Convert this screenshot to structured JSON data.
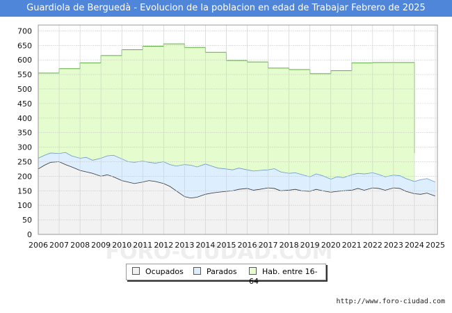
{
  "header": {
    "title": "Guardiola de Berguedà - Evolucion de la poblacion en edad de Trabajar Febrero de 2025"
  },
  "source": {
    "text": "http://www.foro-ciudad.com"
  },
  "watermark": "FORO-CIUDAD.COM",
  "colors": {
    "ocupados": "#f2f2f2",
    "parados": "#ddeeff",
    "hab": "#e4fcce",
    "hab_line": "#5cae3e",
    "parados_line": "#6699cc",
    "ocupados_line": "#333333",
    "grid": "#cccccc",
    "title_bar": "#4f86d9"
  },
  "chart_data": {
    "type": "area",
    "title": "Guardiola de Berguedà - Evolucion de la poblacion en edad de Trabajar Febrero de 2025",
    "xlabel": "",
    "ylabel": "",
    "x_ticks": [
      "2006",
      "2007",
      "2008",
      "2009",
      "2010",
      "2011",
      "2012",
      "2013",
      "2014",
      "2015",
      "2016",
      "2017",
      "2018",
      "2019",
      "2020",
      "2021",
      "2022",
      "2023",
      "2024",
      "2025"
    ],
    "y_ticks": [
      0,
      50,
      100,
      150,
      200,
      250,
      300,
      350,
      400,
      450,
      500,
      550,
      600,
      650,
      700
    ],
    "xlim": [
      2006,
      2025.1
    ],
    "ylim": [
      0,
      720
    ],
    "grid": true,
    "legend": [
      "Ocupados",
      "Parados",
      "Hab. entre 16-64"
    ],
    "legend_position": "bottom",
    "series": [
      {
        "name": "Hab. entre 16-64",
        "note": "annual population, step per year, ends early 2024",
        "years": [
          2006,
          2007,
          2008,
          2009,
          2010,
          2011,
          2012,
          2013,
          2014,
          2015,
          2016,
          2017,
          2018,
          2019,
          2020,
          2021,
          2022,
          2023
        ],
        "values": [
          555,
          570,
          590,
          615,
          635,
          647,
          655,
          643,
          626,
          598,
          593,
          572,
          567,
          553,
          563,
          590,
          591,
          591
        ],
        "end": 2024.0
      },
      {
        "name": "Parados",
        "note": "ocupados + parados, monthly",
        "x": [
          2006.0,
          2006.3,
          2006.6,
          2007.0,
          2007.3,
          2007.6,
          2008.0,
          2008.3,
          2008.6,
          2009.0,
          2009.3,
          2009.6,
          2010.0,
          2010.3,
          2010.6,
          2011.0,
          2011.3,
          2011.6,
          2012.0,
          2012.3,
          2012.6,
          2013.0,
          2013.3,
          2013.6,
          2014.0,
          2014.3,
          2014.6,
          2015.0,
          2015.3,
          2015.6,
          2016.0,
          2016.3,
          2016.6,
          2017.0,
          2017.3,
          2017.6,
          2018.0,
          2018.3,
          2018.6,
          2019.0,
          2019.3,
          2019.6,
          2020.0,
          2020.3,
          2020.6,
          2021.0,
          2021.3,
          2021.6,
          2022.0,
          2022.3,
          2022.6,
          2023.0,
          2023.3,
          2023.6,
          2024.0,
          2024.3,
          2024.6,
          2025.0
        ],
        "values": [
          262,
          272,
          280,
          278,
          282,
          270,
          262,
          265,
          255,
          262,
          270,
          272,
          260,
          250,
          248,
          252,
          248,
          245,
          250,
          240,
          235,
          240,
          238,
          232,
          242,
          235,
          228,
          225,
          222,
          228,
          222,
          218,
          220,
          222,
          226,
          215,
          210,
          212,
          206,
          198,
          208,
          202,
          190,
          198,
          195,
          205,
          210,
          208,
          212,
          206,
          198,
          204,
          202,
          192,
          182,
          188,
          192,
          180
        ]
      },
      {
        "name": "Ocupados",
        "note": "monthly",
        "x": [
          2006.0,
          2006.3,
          2006.6,
          2007.0,
          2007.3,
          2007.6,
          2008.0,
          2008.3,
          2008.6,
          2009.0,
          2009.3,
          2009.6,
          2010.0,
          2010.3,
          2010.6,
          2011.0,
          2011.3,
          2011.6,
          2012.0,
          2012.3,
          2012.6,
          2013.0,
          2013.3,
          2013.6,
          2014.0,
          2014.3,
          2014.6,
          2015.0,
          2015.3,
          2015.6,
          2016.0,
          2016.3,
          2016.6,
          2017.0,
          2017.3,
          2017.6,
          2018.0,
          2018.3,
          2018.6,
          2019.0,
          2019.3,
          2019.6,
          2020.0,
          2020.3,
          2020.6,
          2021.0,
          2021.3,
          2021.6,
          2022.0,
          2022.3,
          2022.6,
          2023.0,
          2023.3,
          2023.6,
          2024.0,
          2024.3,
          2024.6,
          2025.0
        ],
        "values": [
          225,
          238,
          248,
          250,
          240,
          232,
          220,
          215,
          210,
          200,
          205,
          198,
          185,
          180,
          175,
          180,
          185,
          182,
          175,
          165,
          150,
          130,
          125,
          128,
          138,
          142,
          145,
          148,
          150,
          155,
          158,
          152,
          155,
          160,
          158,
          150,
          152,
          155,
          150,
          148,
          155,
          150,
          145,
          148,
          150,
          152,
          158,
          152,
          160,
          158,
          152,
          160,
          158,
          148,
          140,
          138,
          142,
          132
        ]
      }
    ]
  }
}
